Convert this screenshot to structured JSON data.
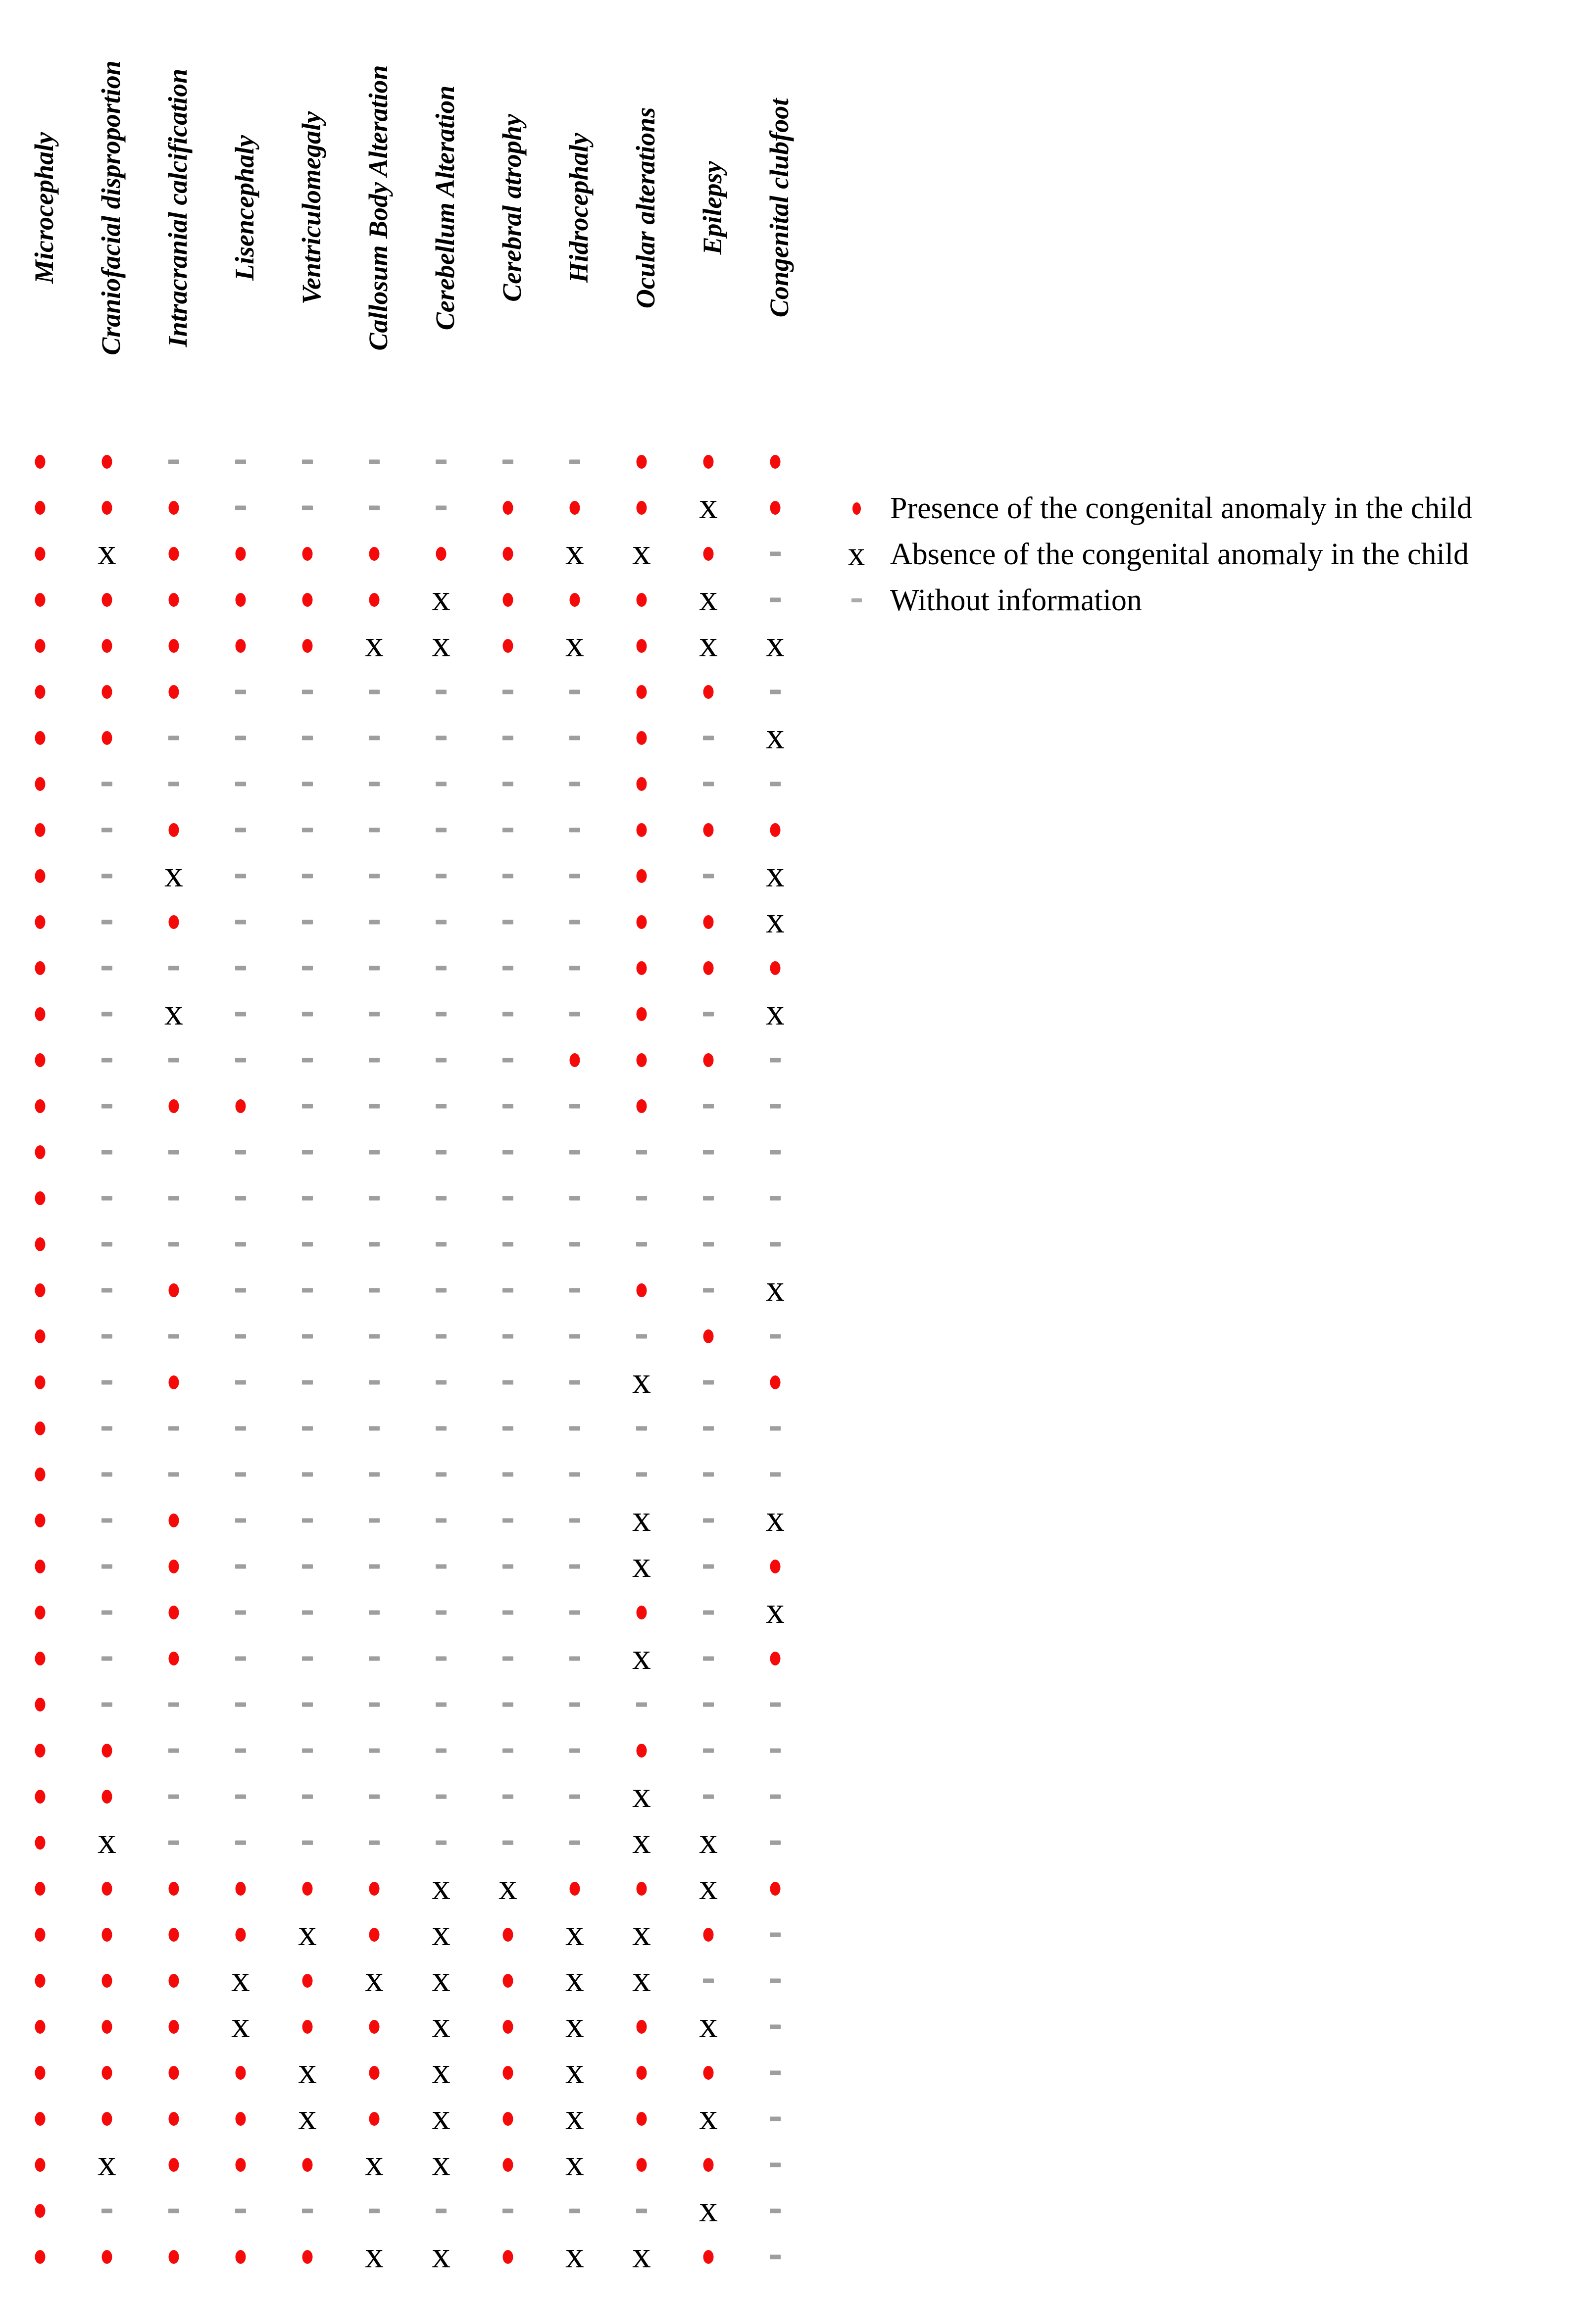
{
  "chart_data": {
    "type": "table",
    "title": "",
    "columns": [
      "Microcephaly",
      "Craniofacial disproportion",
      "Intracranial calcification",
      "Lisencephaly",
      "Ventriculomegaly",
      "Callosum Body Alteration",
      "Cerebellum Alteration",
      "Cerebral atrophy",
      "Hidrocephaly",
      "Ocular alterations",
      "Epilepsy",
      "Congenital clubfoot"
    ],
    "encoding": {
      "1": "Presence of the congenital anomaly in the child",
      "x": "Absence of the congenital anomaly in the child",
      "-": "Without information"
    },
    "n_rows": 40,
    "n_cols": 12,
    "matrix": [
      "11-------111",
      "111----111x1",
      "1x111111xx1-",
      "111111x111x-",
      "11111xx1x1xx",
      "111------11-",
      "11-------1-x",
      "1--------1--",
      "1-1------111",
      "1-x------1-x",
      "1-1------11x",
      "1--------111",
      "1-x------1-x",
      "1-------111-",
      "1-11-----1--",
      "1-----------",
      "1-----------",
      "1-----------",
      "1-1------1-x",
      "1---------1-",
      "1-1------x-1",
      "1-----------",
      "1-----------",
      "1-1------x-x",
      "1-1------x-1",
      "1-1------1-x",
      "1-1------x-1",
      "1-----------",
      "11-------1--",
      "11-------x--",
      "1x-------xx-",
      "111111xx11x1",
      "1111x1x1xx1-",
      "111x1xx1xx--",
      "111x11x1x1x-",
      "1111x1x1x11-",
      "1111x1x1x1x-",
      "1x111xx1x11-",
      "1---------x-",
      "11111xx1xx1-"
    ]
  },
  "legend": {
    "items": [
      {
        "symbol": "dot",
        "label": "Presence of the congenital anomaly in the child"
      },
      {
        "symbol": "x",
        "label": "Absence of the congenital anomaly in the child"
      },
      {
        "symbol": "dash",
        "label": "Without information"
      }
    ]
  },
  "symbols": {
    "x_glyph": "x"
  },
  "colors": {
    "presence_red": "#f50a0a",
    "dash_gray": "#9e9e9e",
    "legend_dash_gray": "#ababab",
    "x_black": "#000000"
  }
}
